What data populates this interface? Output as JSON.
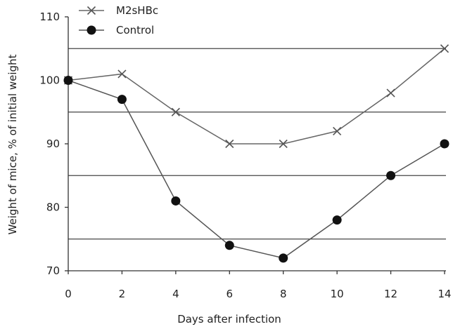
{
  "chart_data": {
    "type": "line",
    "title": "",
    "xlabel": "Days after infection",
    "ylabel": "Weight of mice, % of initial weight",
    "xlim": [
      0,
      14
    ],
    "ylim": [
      70,
      110
    ],
    "x_ticks": [
      "0",
      "2",
      "4",
      "6",
      "8",
      "10",
      "12",
      "14"
    ],
    "y_ticks": [
      "70",
      "80",
      "90",
      "100",
      "110"
    ],
    "x": [
      0,
      2,
      4,
      6,
      8,
      10,
      12,
      14
    ],
    "grid_lines_y": [
      75,
      85,
      95,
      105
    ],
    "legend_position": "top-left",
    "series": [
      {
        "name": "M2sHBc",
        "marker": "x",
        "color": "#555555",
        "values": [
          100,
          101,
          95,
          90,
          90,
          92,
          98,
          105
        ]
      },
      {
        "name": "Control",
        "marker": "circle",
        "color": "#111111",
        "values": [
          100,
          97,
          81,
          74,
          72,
          78,
          85,
          90
        ]
      }
    ]
  }
}
